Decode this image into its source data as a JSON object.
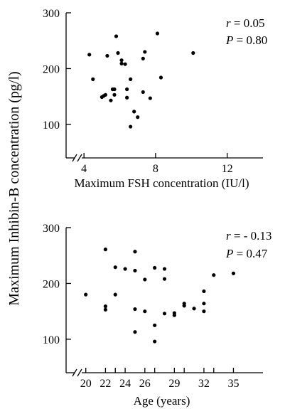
{
  "ylabel": "Maximum Inhibin-B concentration (pg/l)",
  "chart_data": [
    {
      "type": "scatter",
      "xlabel": "Maximum FSH concentration (IU/l)",
      "ylabel": "Maximum Inhibin-B concentration (pg/l)",
      "xlim": [
        3,
        14
      ],
      "ylim": [
        40,
        300
      ],
      "xticks": [
        4,
        8,
        12
      ],
      "yticks": [
        100,
        200,
        300
      ],
      "axis_break": "x",
      "grid": false,
      "annotations": {
        "r": "r = 0.05",
        "p": "P = 0.80"
      },
      "points": [
        [
          4.3,
          225
        ],
        [
          4.5,
          181
        ],
        [
          5.0,
          149
        ],
        [
          5.1,
          151
        ],
        [
          5.2,
          153
        ],
        [
          5.3,
          223
        ],
        [
          5.5,
          143
        ],
        [
          5.6,
          163
        ],
        [
          5.7,
          163
        ],
        [
          5.7,
          153
        ],
        [
          5.8,
          258
        ],
        [
          5.9,
          228
        ],
        [
          6.1,
          215
        ],
        [
          6.1,
          209
        ],
        [
          6.3,
          208
        ],
        [
          6.4,
          163
        ],
        [
          6.4,
          148
        ],
        [
          6.6,
          181
        ],
        [
          6.6,
          96
        ],
        [
          6.8,
          123
        ],
        [
          7.0,
          113
        ],
        [
          7.3,
          218
        ],
        [
          7.3,
          158
        ],
        [
          7.4,
          230
        ],
        [
          7.7,
          147
        ],
        [
          8.1,
          263
        ],
        [
          8.3,
          184
        ],
        [
          10.1,
          228
        ]
      ]
    },
    {
      "type": "scatter",
      "xlabel": "Age (years)",
      "ylabel": "Maximum Inhibin-B concentration (pg/l)",
      "xlim": [
        18,
        38
      ],
      "ylim": [
        40,
        300
      ],
      "xticks": [
        20,
        22,
        23,
        24,
        26,
        27,
        29,
        30,
        32,
        33,
        35
      ],
      "xtick_labels": [
        "20",
        "22",
        "",
        "24",
        "26",
        "",
        "29",
        "",
        "32",
        "",
        "35"
      ],
      "yticks": [
        100,
        200,
        300
      ],
      "axis_break": "x",
      "grid": false,
      "annotations": {
        "r": "r = - 0.13",
        "p": "P = 0.47"
      },
      "points": [
        [
          20,
          180
        ],
        [
          22,
          261
        ],
        [
          22,
          159
        ],
        [
          22,
          153
        ],
        [
          23,
          229
        ],
        [
          23,
          180
        ],
        [
          24,
          226
        ],
        [
          25,
          257
        ],
        [
          25,
          223
        ],
        [
          25,
          154
        ],
        [
          25,
          113
        ],
        [
          26,
          207
        ],
        [
          26,
          150
        ],
        [
          27,
          228
        ],
        [
          27,
          125
        ],
        [
          27,
          96
        ],
        [
          28,
          226
        ],
        [
          28,
          208
        ],
        [
          28,
          146
        ],
        [
          29,
          147
        ],
        [
          29,
          143
        ],
        [
          30,
          164
        ],
        [
          30,
          160
        ],
        [
          31,
          155
        ],
        [
          32,
          186
        ],
        [
          32,
          164
        ],
        [
          32,
          150
        ],
        [
          33,
          215
        ],
        [
          35,
          218
        ]
      ]
    }
  ]
}
